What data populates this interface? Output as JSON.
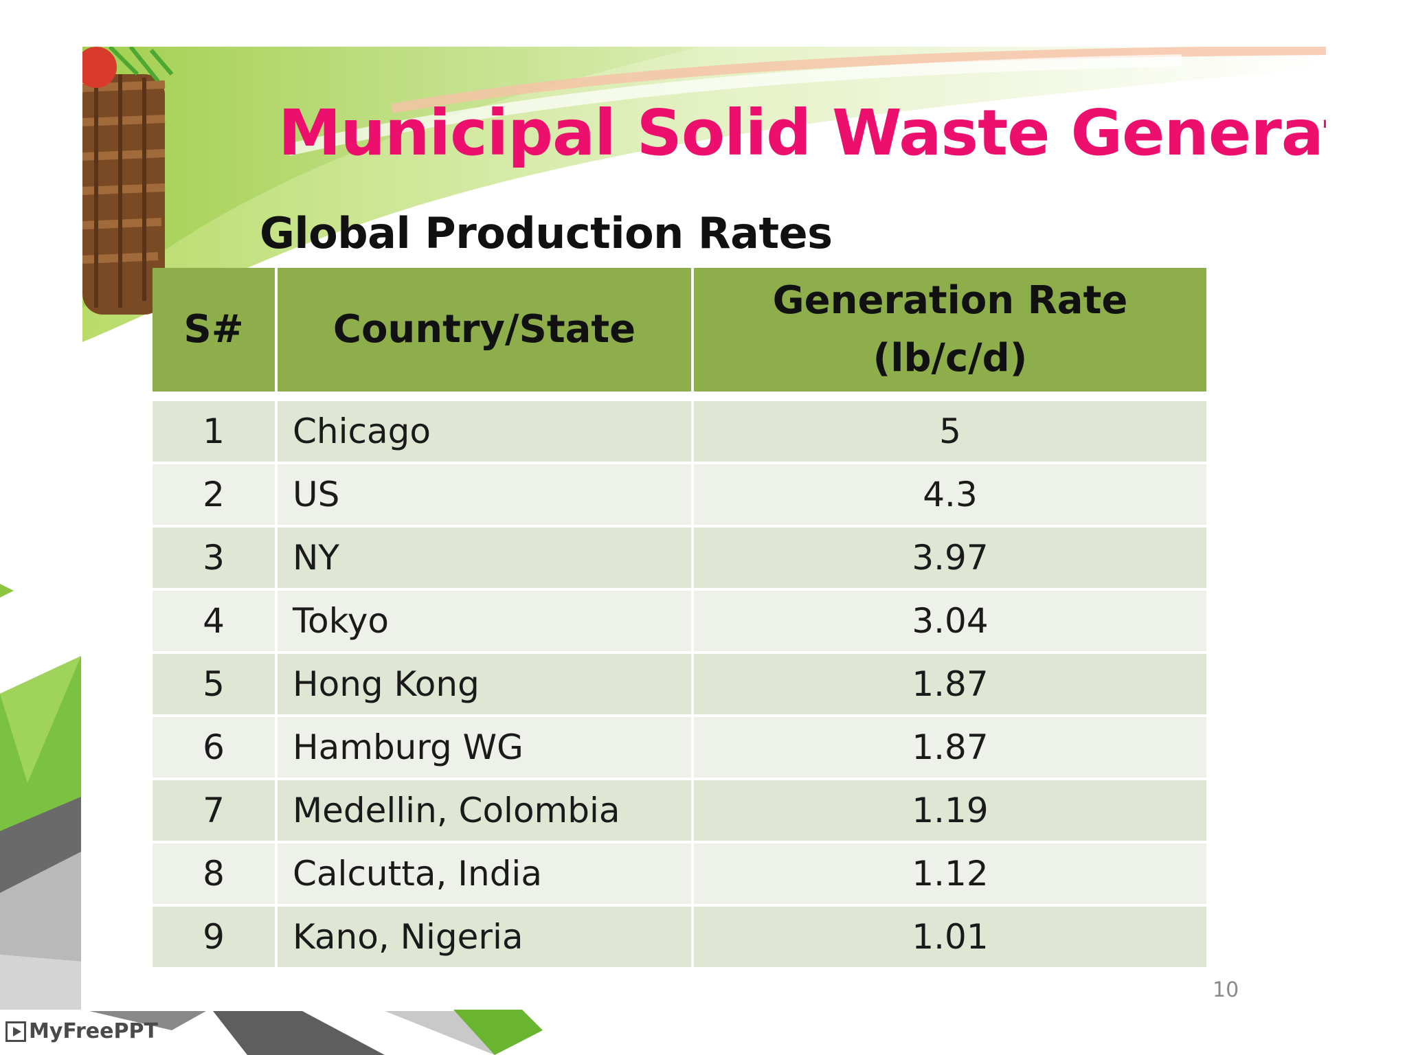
{
  "slide": {
    "title": "Municipal Solid Waste Generation",
    "subtitle": "Global Production Rates",
    "page_number": "10"
  },
  "table": {
    "headers": {
      "number": "S#",
      "country": "Country/State",
      "rate_line1": "Generation Rate",
      "rate_line2": "(lb/c/d)"
    },
    "rows": [
      {
        "n": "1",
        "country": "Chicago",
        "rate": "5"
      },
      {
        "n": "2",
        "country": "US",
        "rate": "4.3"
      },
      {
        "n": "3",
        "country": "NY",
        "rate": "3.97"
      },
      {
        "n": "4",
        "country": "Tokyo",
        "rate": "3.04"
      },
      {
        "n": "5",
        "country": "Hong Kong",
        "rate": "1.87"
      },
      {
        "n": "6",
        "country": "Hamburg WG",
        "rate": "1.87"
      },
      {
        "n": "7",
        "country": "Medellin, Colombia",
        "rate": "1.19"
      },
      {
        "n": "8",
        "country": "Calcutta, India",
        "rate": "1.12"
      },
      {
        "n": "9",
        "country": "Kano, Nigeria",
        "rate": "1.01"
      }
    ]
  },
  "watermark": {
    "text": "MyFreePPT"
  },
  "colors": {
    "title": "#ec0f6d",
    "header_fill": "#8eae4b",
    "row_odd": "#dfe6d4",
    "row_even": "#eef1ea"
  }
}
